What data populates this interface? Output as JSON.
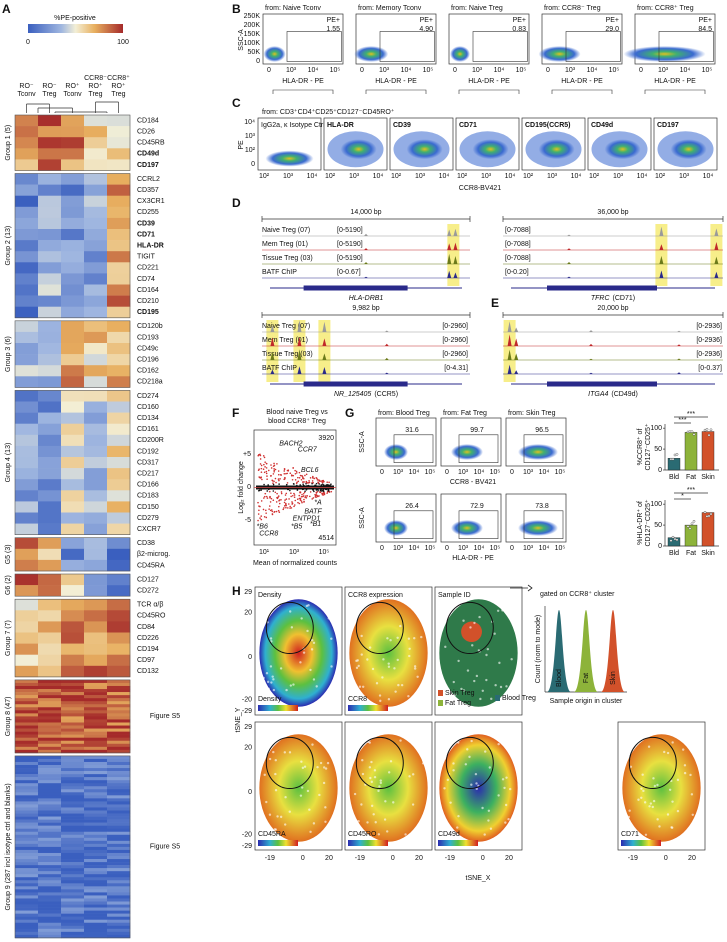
{
  "panel_labels": [
    "A",
    "B",
    "C",
    "D",
    "E",
    "F",
    "G",
    "H"
  ],
  "A": {
    "legend_title": "%PE-positive",
    "scale_min": "0",
    "scale_max": "100",
    "columns": [
      [
        "RO⁻",
        "Tconv"
      ],
      [
        "RO⁻",
        "Treg"
      ],
      [
        "RO⁺",
        "Tconv"
      ],
      [
        "CCR8⁻",
        "RO⁺",
        "Treg"
      ],
      [
        "CCR8⁺",
        "RO⁺",
        "Treg"
      ]
    ],
    "groups": [
      {
        "name": "Group 1 (5)",
        "markers": [
          {
            "label": "CD184"
          },
          {
            "label": "CD26"
          },
          {
            "label": "CD45RB"
          },
          {
            "label": "CD49d",
            "color": "#2a8fd0"
          },
          {
            "label": "CD197",
            "color": "#2a8fd0"
          }
        ]
      },
      {
        "name": "Group 2 (13)",
        "markers": [
          {
            "label": "CCRL2"
          },
          {
            "label": "CD357"
          },
          {
            "label": "CX3CR1"
          },
          {
            "label": "CD255"
          },
          {
            "label": "CD39",
            "color": "#c0282a"
          },
          {
            "label": "CD71",
            "color": "#c0282a"
          },
          {
            "label": "HLA-DR",
            "color": "#c0282a"
          },
          {
            "label": "TIGIT"
          },
          {
            "label": "CD221"
          },
          {
            "label": "CD74"
          },
          {
            "label": "CD164"
          },
          {
            "label": "CD210"
          },
          {
            "label": "CD195",
            "color": "#c0282a"
          }
        ]
      },
      {
        "name": "Group 3 (6)",
        "markers": [
          {
            "label": "CD120b"
          },
          {
            "label": "CD193"
          },
          {
            "label": "CD49c"
          },
          {
            "label": "CD196"
          },
          {
            "label": "CD162"
          },
          {
            "label": "CD218a"
          }
        ]
      },
      {
        "name": "Group 4 (13)",
        "markers": [
          {
            "label": "CD274"
          },
          {
            "label": "CD160"
          },
          {
            "label": "CD134"
          },
          {
            "label": "CD161"
          },
          {
            "label": "CD200R"
          },
          {
            "label": "CD192"
          },
          {
            "label": "CD317"
          },
          {
            "label": "CD217"
          },
          {
            "label": "CD166"
          },
          {
            "label": "CD183"
          },
          {
            "label": "CD150"
          },
          {
            "label": "CD279"
          },
          {
            "label": "CXCR7"
          }
        ]
      },
      {
        "name": "G5 (3)",
        "markers": [
          {
            "label": "CD38"
          },
          {
            "label": "β2-microg."
          },
          {
            "label": "CD45RA"
          }
        ]
      },
      {
        "name": "G6 (2)",
        "markers": [
          {
            "label": "CD127"
          },
          {
            "label": "CD272"
          }
        ]
      },
      {
        "name": "Group 7 (7)",
        "markers": [
          {
            "label": "TCR α/β"
          },
          {
            "label": "CD45RO"
          },
          {
            "label": "CD84"
          },
          {
            "label": "CD226"
          },
          {
            "label": "CD194"
          },
          {
            "label": "CD97"
          },
          {
            "label": "CD132"
          }
        ]
      },
      {
        "name": "Group 8 (47)",
        "note": "Figure S5"
      },
      {
        "name": "Group 9 (287 incl isotype ctrl and blanks)",
        "note": "Figure S5"
      }
    ]
  },
  "B": {
    "ylabel": "SSC-A",
    "xlabel": "HLA-DR - PE",
    "gate_label": "PE+",
    "yticks": [
      "250K",
      "200K",
      "150K",
      "100K",
      "50K",
      "0"
    ],
    "xticks": [
      "0",
      "10³",
      "10⁴",
      "10⁵"
    ],
    "plots": [
      {
        "source": "from: Naive Tconv",
        "value": "1.55"
      },
      {
        "source": "from: Memory Tconv",
        "value": "4.90"
      },
      {
        "source": "from: Naive Treg",
        "value": "0.83"
      },
      {
        "source": "from: CCR8⁻ Treg",
        "value": "29.0"
      },
      {
        "source": "from: CCR8⁺ Treg",
        "value": "84.5"
      }
    ]
  },
  "C": {
    "header": "from: CD3⁺CD4⁺CD25⁺CD127⁻CD45RO⁺",
    "ylabel": "PE",
    "xlabel": "CCR8-BV421",
    "yticks": [
      "10⁴",
      "10³",
      "10²",
      "0"
    ],
    "xticks": [
      "10²",
      "10³",
      "10⁴"
    ],
    "plots": [
      {
        "label": "IgG2a, κ Isotype Ctrl",
        "color": "#222222"
      },
      {
        "label": "HLA-DR",
        "color": "#c0282a"
      },
      {
        "label": "CD39",
        "color": "#c0282a"
      },
      {
        "label": "CD71",
        "color": "#c0282a"
      },
      {
        "label": "CD195(CCR5)",
        "color": "#c0282a"
      },
      {
        "label": "CD49d",
        "color": "#2a8fd0"
      },
      {
        "label": "CD197",
        "color": "#2a8fd0"
      }
    ]
  },
  "D": {
    "track_names": [
      "Naive Treg (07)",
      "Mem Treg (01)",
      "Tissue Treg (03)",
      "BATF ChIP"
    ],
    "left": {
      "length": "14,000 bp",
      "ranges": [
        "[0-5190]",
        "[0-5190]",
        "[0-5190]",
        "[0-0.67]"
      ],
      "gene": "HLA-DRB1"
    },
    "right": {
      "length": "36,000 bp",
      "ranges": [
        "[0-7088]",
        "[0-7088]",
        "[0-7088]",
        "[0-0.20]"
      ],
      "gene": "TFRC",
      "gene_note": "(CD71)"
    }
  },
  "E": {
    "track_names": [
      "Naive Treg (07)",
      "Mem Treg (01)",
      "Tissue Treg (03)",
      "BATF ChIP"
    ],
    "left": {
      "length": "9,982 bp",
      "ranges": [
        "[0-2960]",
        "[0-2960]",
        "[0-2960]",
        "[0-4.31]"
      ],
      "gene": "NR_125405",
      "gene_note": "(CCR5)"
    },
    "right": {
      "length": "20,000 bp",
      "ranges": [
        "[0-2936]",
        "[0-2936]",
        "[0-2936]",
        "[0-0.37]"
      ],
      "gene": "ITGA4",
      "gene_note": "(CD49d)"
    }
  },
  "F": {
    "title_lines": [
      "Blood naive Treg vs",
      "blood CCR8⁺ Treg"
    ],
    "ylabel": "Log₂ fold change",
    "xlabel": "Mean of normalized counts",
    "up_count": "3920",
    "down_count": "4514",
    "yticks": [
      "+5",
      "0",
      "-5"
    ],
    "xticks": [
      "10¹",
      "10³",
      "10⁵"
    ],
    "genes": [
      "BACH2",
      "CCR7",
      "BCL6",
      "*A",
      "BATF",
      "ENTPD1",
      "*B1",
      "*B6",
      "*B5",
      "CCR8"
    ]
  },
  "G": {
    "sources": [
      "from: Blood Treg",
      "from: Fat Treg",
      "from: Skin Treg"
    ],
    "ylabel": "SSC-A",
    "xticks": [
      "0",
      "10³",
      "10⁴",
      "10⁵"
    ],
    "top": {
      "values": [
        "31.6",
        "99.7",
        "96.5"
      ],
      "xlabel": "CCR8 - BV421"
    },
    "bottom": {
      "values": [
        "26.4",
        "72.9",
        "73.8"
      ],
      "xlabel": "HLA-DR - PE"
    },
    "bar_colors": [
      "#2a6b73",
      "#8db33a",
      "#d2512a"
    ],
    "bars": [
      {
        "ylabel_lines": [
          "%CCR8⁺ of",
          "CD127⁻CD25⁺"
        ],
        "categories": [
          "Bld",
          "Fat",
          "Skin"
        ],
        "values": [
          28,
          90,
          92
        ],
        "ylim": [
          0,
          110
        ],
        "yticks": [
          0,
          50,
          100
        ],
        "significance": [
          "***",
          "***"
        ]
      },
      {
        "ylabel_lines": [
          "%HLA-DR⁺ of",
          "CD127⁻CD25⁺"
        ],
        "categories": [
          "Bld",
          "Fat",
          "Skin"
        ],
        "values": [
          20,
          50,
          80
        ],
        "ylim": [
          0,
          110
        ],
        "yticks": [
          0,
          50,
          100
        ],
        "significance": [
          "*",
          "***"
        ]
      }
    ]
  },
  "H": {
    "titles": [
      "Density",
      "CCR8 expression",
      "Sample ID"
    ],
    "gate_note": "gated on CCR8⁺ cluster",
    "colorbar_labels": [
      "Density",
      "CCR8"
    ],
    "sample_legend": [
      "Skin Treg",
      "Fat Treg",
      "Blood Treg"
    ],
    "sample_colors": [
      "#d2512a",
      "#8db33a",
      "#2a6b73"
    ],
    "hist_ylabel": "Count (norm to mode)",
    "hist_labels": [
      "Blood",
      "Fat",
      "Skin"
    ],
    "hist_xlabel": "Sample origin in cluster",
    "bottom_labels": [
      "CD45RA",
      "CD45RO",
      "CD49d",
      "CD71"
    ],
    "ylabel": "tSNE_Y",
    "xlabel": "tSNE_X",
    "yticks": [
      "29",
      "20",
      "0",
      "-20",
      "-29"
    ],
    "xticks": [
      "-19",
      "0",
      "20"
    ]
  }
}
